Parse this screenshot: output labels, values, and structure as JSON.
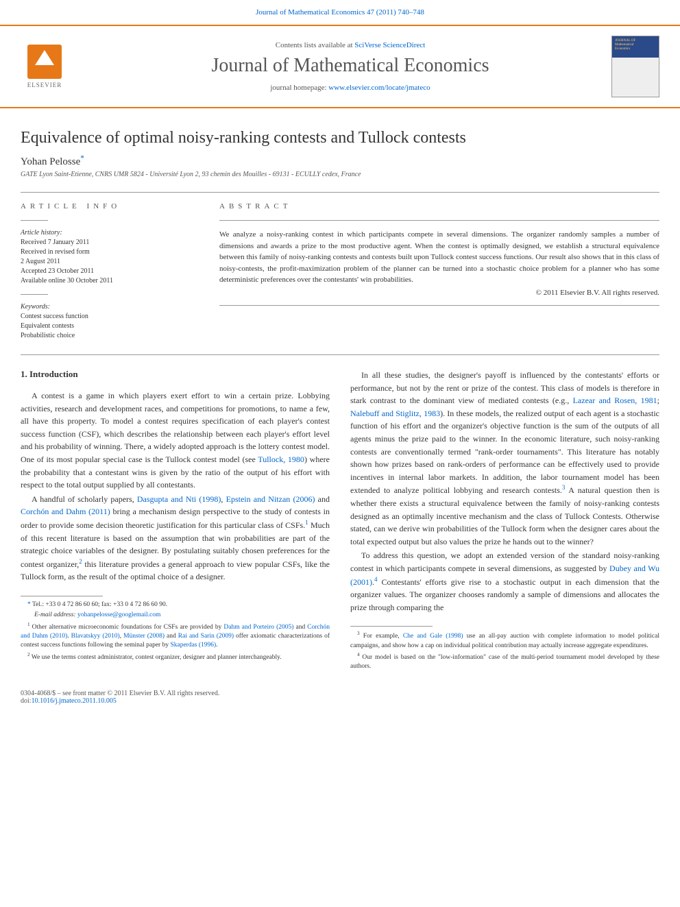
{
  "header": {
    "citation_prefix": "Journal of Mathematical Economics 47 (2011) 740–748",
    "contents_text": "Contents lists available at ",
    "contents_link": "SciVerse ScienceDirect",
    "journal_title": "Journal of Mathematical Economics",
    "homepage_text": "journal homepage: ",
    "homepage_link": "www.elsevier.com/locate/jmateco",
    "elsevier_label": "ELSEVIER"
  },
  "article": {
    "title": "Equivalence of optimal noisy-ranking contests and Tullock contests",
    "author": "Yohan Pelosse",
    "author_marker": "*",
    "affiliation": "GATE Lyon Saint-Etienne, CNRS UMR 5824 - Université Lyon 2, 93 chemin des Mouilles - 69131 - ECULLY cedex, France"
  },
  "info": {
    "label": "ARTICLE INFO",
    "history_label": "Article history:",
    "history": [
      "Received 7 January 2011",
      "Received in revised form",
      "2 August 2011",
      "Accepted 23 October 2011",
      "Available online 30 October 2011"
    ],
    "keywords_label": "Keywords:",
    "keywords": [
      "Contest success function",
      "Equivalent contests",
      "Probabilistic choice"
    ]
  },
  "abstract": {
    "label": "ABSTRACT",
    "text": "We analyze a noisy-ranking contest in which participants compete in several dimensions. The organizer randomly samples a number of dimensions and awards a prize to the most productive agent. When the contest is optimally designed, we establish a structural equivalence between this family of noisy-ranking contests and contests built upon Tullock contest success functions. Our result also shows that in this class of noisy-contests, the profit-maximization problem of the planner can be turned into a stochastic choice problem for a planner who has some deterministic preferences over the contestants' win probabilities.",
    "copyright": "© 2011 Elsevier B.V. All rights reserved."
  },
  "body": {
    "heading": "1. Introduction",
    "col1": {
      "p1_a": "A contest is a game in which players exert effort to win a certain prize. Lobbying activities, research and development races, and competitions for promotions, to name a few, all have this property. To model a contest requires specification of each player's contest success function (CSF), which describes the relationship between each player's effort level and his probability of winning. There, a widely adopted approach is the lottery contest model. One of its most popular special case is the Tullock contest model (see ",
      "p1_link1": "Tullock, 1980",
      "p1_b": ") where the probability that a contestant wins is given by the ratio of the output of his effort with respect to the total output supplied by all contestants.",
      "p2_a": "A handful of scholarly papers, ",
      "p2_link1": "Dasgupta and Nti (1998)",
      "p2_b": ", ",
      "p2_link2": "Epstein and Nitzan (2006)",
      "p2_c": " and ",
      "p2_link3": "Corchón and Dahm (2011)",
      "p2_d": " bring a mechanism design perspective to the study of contests in order to provide some decision theoretic justification for this particular class of CSFs.",
      "p2_sup1": "1",
      "p2_e": " Much of this recent literature is based on the assumption that win probabilities are part of the strategic choice variables of the designer. By postulating suitably chosen preferences for the contest organizer,",
      "p2_sup2": "2",
      "p2_f": " this literature provides a general approach to view popular CSFs, like the Tullock form, as the result of the optimal choice of a designer."
    },
    "col2": {
      "p1_a": "In all these studies, the designer's payoff is influenced by the contestants' efforts or performance, but not by the rent or prize of the contest. This class of models is therefore in stark contrast to the dominant view of mediated contests (e.g., ",
      "p1_link1": "Lazear and Rosen, 1981",
      "p1_b": "; ",
      "p1_link2": "Nalebuff and Stiglitz, 1983",
      "p1_c": "). In these models, the realized output of each agent is a stochastic function of his effort and the organizer's objective function is the sum of the outputs of all agents minus the prize paid to the winner. In the economic literature, such noisy-ranking contests are conventionally termed \"rank-order tournaments\". This literature has notably shown how prizes based on rank-orders of performance can be effectively used to provide incentives in internal labor markets. In addition, the labor tournament model has been extended to analyze political lobbying and research contests.",
      "p1_sup": "3",
      "p1_d": " A natural question then is whether there exists a structural equivalence between the family of noisy-ranking contests designed as an optimally incentive mechanism and the class of Tullock Contests. Otherwise stated, can we derive win probabilities of the Tullock form when the designer cares about the total expected output but also values the prize he hands out to the winner?",
      "p2_a": "To address this question, we adopt an extended version of the standard noisy-ranking contest in which participants compete in several dimensions, as suggested by ",
      "p2_link1": "Dubey and Wu (2001)",
      "p2_b": ".",
      "p2_sup": "4",
      "p2_c": " Contestants' efforts give rise to a stochastic output in each dimension that the organizer values. The organizer chooses randomly a sample of dimensions and allocates the prize through comparing the"
    }
  },
  "footnotes": {
    "left": {
      "corr_a": "Tel.: +33 0 4 72 86 60 60; fax: +33 0 4 72 86 60 90.",
      "email_label": "E-mail address: ",
      "email": "yohanpelosse@googlemail.com",
      "f1_a": "Other alternative microeconomic foundations for CSFs are provided by ",
      "f1_link1": "Dahm and Porteiro (2005)",
      "f1_b": " and ",
      "f1_link2": "Corchón and Dahm (2010)",
      "f1_c": ". ",
      "f1_link3": "Blavatskyy (2010)",
      "f1_d": ", ",
      "f1_link4": "Münster (2008)",
      "f1_e": " and ",
      "f1_link5": "Rai and Sarin (2009)",
      "f1_f": " offer axiomatic characterizations of contest success functions following the seminal paper by ",
      "f1_link6": "Skaperdas (1996)",
      "f1_g": ".",
      "f2": "We use the terms contest administrator, contest organizer, designer and planner interchangeably."
    },
    "right": {
      "f3_a": "For example, ",
      "f3_link1": "Che and Gale (1998)",
      "f3_b": " use an all-pay auction with complete information to model political campaigns, and show how a cap on individual political contribution may actually increase aggregate expenditures.",
      "f4": "Our model is based on the \"low-information\" case of the multi-period tournament model developed by these authors."
    }
  },
  "footer": {
    "line1": "0304-4068/$ – see front matter © 2011 Elsevier B.V. All rights reserved.",
    "doi_label": "doi:",
    "doi": "10.1016/j.jmateco.2011.10.005"
  }
}
